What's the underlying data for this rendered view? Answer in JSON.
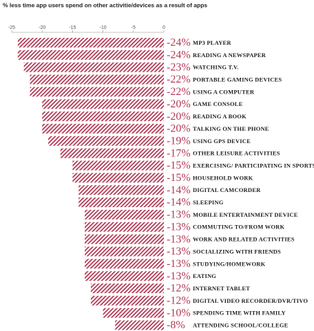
{
  "chart_data": {
    "type": "bar",
    "orientation": "horizontal",
    "title": "% less time app users spend on other activitie/devices as a result of apps",
    "categories": [
      "MP3 PLAYER",
      "READING A NEWSPAPER",
      "WATCHING T.V.",
      "PORTABLE GAMING DEVICES",
      "USING A COMPUTER",
      "GAME CONSOLE",
      "READING A BOOK",
      "TALKING ON THE PHONE",
      "USING GPS DEVICE",
      "OTHER LEISURE ACTIVITIES",
      "EXERCISING/ PARTICIPATING IN SPORTS",
      "HOUSEHOLD WORK",
      "DIGITAL CAMCORDER",
      "SLEEPING",
      "MOBILE  ENTERTAINMENT DEVICE",
      "COMMUTING TO/FROM WORK",
      "WORK AND RELATED ACTIVITIES",
      "SOCIALIZING WITH FRIENDS",
      "STUDYING/HOMEWORK",
      "EATING",
      "INTERNET TABLET",
      "DIGITAL VIDEO RECORDER/DVR/TIVO",
      "SPENDING TIME WITH FAMILY",
      "ATTENDING SCHOOL/COLLEGE"
    ],
    "values": [
      -24,
      -24,
      -23,
      -22,
      -22,
      -20,
      -20,
      -20,
      -19,
      -17,
      -15,
      -15,
      -14,
      -14,
      -13,
      -13,
      -13,
      -13,
      -13,
      -13,
      -12,
      -12,
      -10,
      -8
    ],
    "value_labels": [
      "-24%",
      "-24%",
      "-23%",
      "-22%",
      "-22%",
      "-20%",
      "-20%",
      "-20%",
      "-19%",
      "-17%",
      "-15%",
      "-15%",
      "-14%",
      "-14%",
      "-13%",
      "-13%",
      "-13%",
      "-13%",
      "-13%",
      "-13%",
      "-12%",
      "-12%",
      "-10%",
      "-8%"
    ],
    "color": "#b23a55",
    "xlim": [
      -25,
      0
    ],
    "xticks": [
      -25,
      -20,
      -15,
      -10,
      -5,
      0
    ]
  }
}
